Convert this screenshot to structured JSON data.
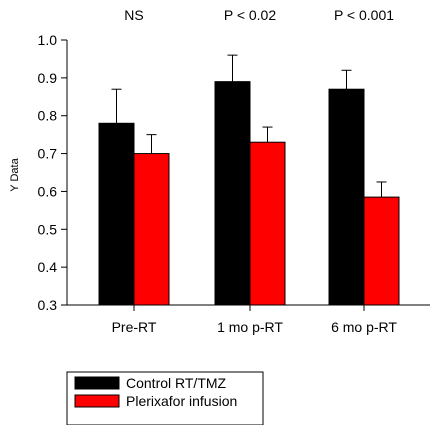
{
  "chart_data": {
    "type": "bar",
    "categories": [
      "Pre-RT",
      "1 mo p-RT",
      "6 mo p-RT"
    ],
    "annotations": [
      "NS",
      "P < 0.02",
      "P < 0.001"
    ],
    "ylabel": "Y Data",
    "ylim": [
      0.3,
      1.0
    ],
    "yticks": [
      "0.3",
      "0.4",
      "0.5",
      "0.6",
      "0.7",
      "0.8",
      "0.9",
      "1.0"
    ],
    "series": [
      {
        "name": "Control RT/TMZ",
        "color": "#000000",
        "values": [
          0.78,
          0.89,
          0.87
        ],
        "error_upper": [
          0.09,
          0.07,
          0.05
        ]
      },
      {
        "name": "Plerixafor infusion",
        "color": "#ff0000",
        "values": [
          0.7,
          0.73,
          0.585
        ],
        "error_upper": [
          0.05,
          0.04,
          0.04
        ]
      }
    ],
    "legend_position": "bottom-left"
  }
}
